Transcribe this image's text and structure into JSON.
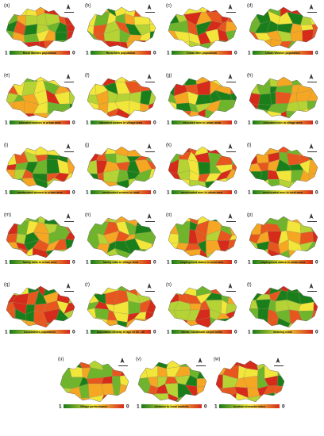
{
  "legend": {
    "high": "1",
    "low": "0"
  },
  "panels": [
    {
      "label": "(a)",
      "caption": "Rural Women population"
    },
    {
      "label": "(b)",
      "caption": "Rural Men population"
    },
    {
      "label": "(c)",
      "caption": "Urban Men population"
    },
    {
      "label": "(d)",
      "caption": "Urban Women population"
    },
    {
      "label": "(e)",
      "caption": "educated women in urban area"
    },
    {
      "label": "(f)",
      "caption": "educated women in village area"
    },
    {
      "label": "(g)",
      "caption": "educated men in urban area"
    },
    {
      "label": "(h)",
      "caption": "educated men in village area"
    },
    {
      "label": "(i)",
      "caption": "uneducated women in urban area"
    },
    {
      "label": "(j)",
      "caption": "uneducated women in rural"
    },
    {
      "label": "(k)",
      "caption": "uneducated men in urban area"
    },
    {
      "label": "(l)",
      "caption": "uneducated men in rural area"
    },
    {
      "label": "(m)",
      "caption": "family ratio in urban area"
    },
    {
      "label": "(n)",
      "caption": "family ratio in village area"
    },
    {
      "label": "(o)",
      "caption": "employment status in rural area"
    },
    {
      "label": "(p)",
      "caption": "employment status in urban area"
    },
    {
      "label": "(q)",
      "caption": "housewives population"
    },
    {
      "label": "(r)",
      "caption": "population density in age of 20 - 40"
    },
    {
      "label": "(s)",
      "caption": "wheat, handmade carpet units"
    },
    {
      "label": "(t)",
      "caption": "weaving units"
    },
    {
      "label": "(u)",
      "caption": "Village performance"
    },
    {
      "label": "(v)",
      "caption": "distance to local markets"
    },
    {
      "label": "(w)",
      "caption": "tourism characteristics"
    }
  ]
}
